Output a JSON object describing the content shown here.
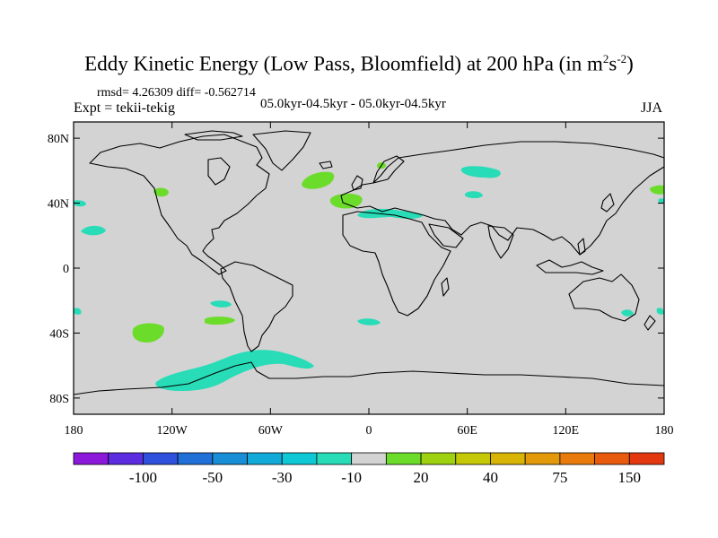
{
  "title": {
    "main": "Eddy Kinetic Energy (Low Pass, Bloomfield) at 200 hPa (in m",
    "exp1": "2",
    "mid": "s",
    "exp2": "-2",
    "close": ")"
  },
  "stats": "rmsd= 4.26309 diff= -0.562714",
  "experiment": "Expt = tekii-tekig",
  "period": "05.0kyr-04.5kyr - 05.0kyr-04.5kyr",
  "season": "JJA",
  "map": {
    "background_color": "#d3d3d3",
    "lat_labels": [
      "80N",
      "40N",
      "0",
      "40S",
      "80S"
    ],
    "lon_labels": [
      "180",
      "120W",
      "60W",
      "0",
      "60E",
      "120E",
      "180"
    ],
    "lat_values": [
      80,
      40,
      0,
      -40,
      -80
    ],
    "lon_values": [
      -180,
      -120,
      -60,
      0,
      60,
      120,
      180
    ]
  },
  "colorbar": {
    "colors": [
      "#8c19d9",
      "#5b2ce0",
      "#2f50dc",
      "#2170d8",
      "#178ed6",
      "#11a9d8",
      "#0fc8d6",
      "#28dcb8",
      "#d3d3d3",
      "#6cdc2a",
      "#9ed10f",
      "#c5c806",
      "#d8b407",
      "#e39a0a",
      "#e87b0c",
      "#e85a0e",
      "#e3380f"
    ],
    "labels": [
      "-100",
      "-50",
      "-30",
      "-10",
      "20",
      "40",
      "75",
      "150"
    ]
  }
}
